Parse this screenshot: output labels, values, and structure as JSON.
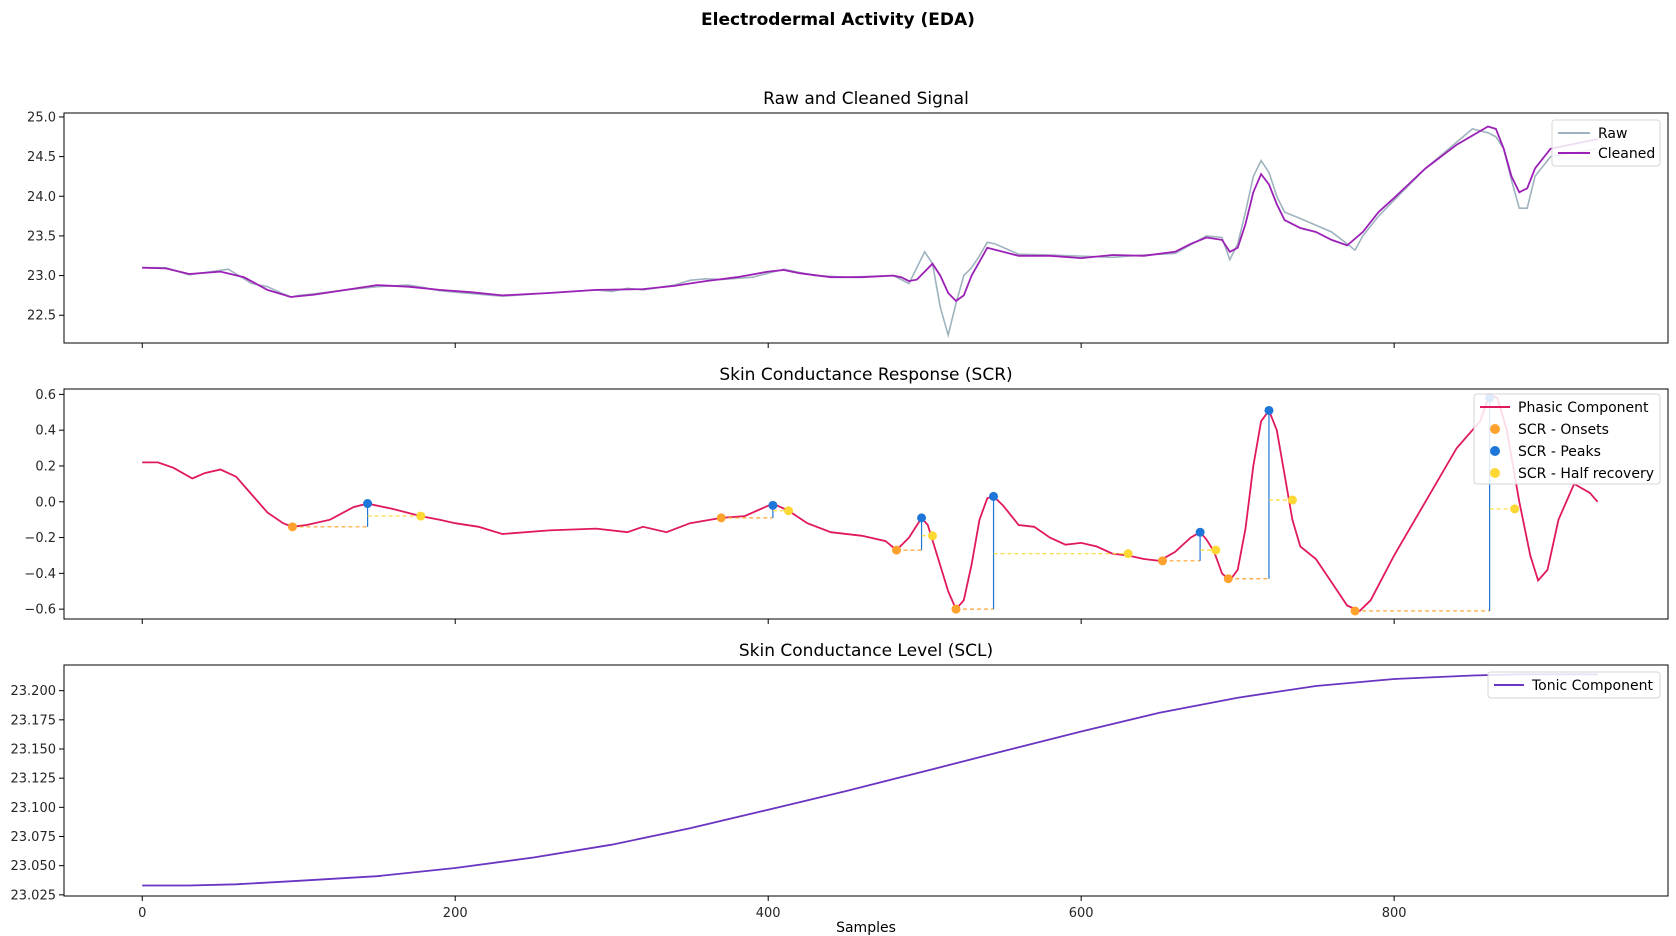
{
  "figure_title": "Electrodermal Activity (EDA)",
  "colors": {
    "raw": "#9fb3bf",
    "cleaned": "#9b20b6",
    "phasic": "#e0185e",
    "onsets": "#ffa22d",
    "peaks": "#1e76d8",
    "half_recovery": "#fdd835",
    "tonic": "#6a35c2"
  },
  "chart_data": [
    {
      "type": "line",
      "title": "Raw and Cleaned Signal",
      "xlim": [
        -50,
        975
      ],
      "ylim": [
        22.15,
        25.05
      ],
      "yticks": [
        "22.5",
        "23.0",
        "23.5",
        "24.0",
        "24.5",
        "25.0"
      ],
      "legend_position": "top-right",
      "series": [
        {
          "name": "Raw",
          "x": [
            0,
            15,
            30,
            55,
            70,
            80,
            90,
            95,
            100,
            110,
            130,
            150,
            170,
            180,
            190,
            200,
            230,
            260,
            290,
            300,
            310,
            320,
            340,
            350,
            360,
            370,
            390,
            410,
            430,
            450,
            480,
            490,
            500,
            505,
            510,
            515,
            520,
            525,
            530,
            535,
            540,
            545,
            560,
            580,
            620,
            640,
            660,
            680,
            690,
            695,
            700,
            705,
            710,
            715,
            720,
            725,
            730,
            740,
            760,
            770,
            775,
            780,
            790,
            800,
            820,
            850,
            860,
            865,
            870,
            875,
            880,
            885,
            890,
            900,
            930
          ],
          "values": [
            23.1,
            23.1,
            23.01,
            23.08,
            22.9,
            22.86,
            22.77,
            22.73,
            22.75,
            22.77,
            22.82,
            22.86,
            22.88,
            22.85,
            22.81,
            22.79,
            22.74,
            22.78,
            22.82,
            22.8,
            22.84,
            22.82,
            22.88,
            22.94,
            22.96,
            22.95,
            22.98,
            23.08,
            23.0,
            22.98,
            23.0,
            22.9,
            23.3,
            23.15,
            22.6,
            22.25,
            22.65,
            23.0,
            23.1,
            23.25,
            23.42,
            23.4,
            23.27,
            23.26,
            23.23,
            23.26,
            23.28,
            23.5,
            23.48,
            23.2,
            23.4,
            23.8,
            24.25,
            24.45,
            24.3,
            24.0,
            23.8,
            23.72,
            23.55,
            23.4,
            23.32,
            23.5,
            23.75,
            23.95,
            24.35,
            24.85,
            24.8,
            24.75,
            24.6,
            24.2,
            23.85,
            23.85,
            24.25,
            24.5,
            24.6
          ]
        },
        {
          "name": "Cleaned",
          "x": [
            0,
            15,
            30,
            50,
            65,
            80,
            95,
            110,
            130,
            150,
            170,
            190,
            210,
            230,
            260,
            290,
            320,
            340,
            360,
            380,
            400,
            410,
            420,
            440,
            460,
            480,
            485,
            490,
            495,
            500,
            505,
            510,
            515,
            520,
            525,
            530,
            540,
            550,
            560,
            580,
            600,
            620,
            640,
            660,
            670,
            680,
            690,
            695,
            700,
            705,
            710,
            715,
            720,
            725,
            730,
            740,
            750,
            760,
            770,
            780,
            790,
            800,
            820,
            840,
            860,
            865,
            870,
            875,
            880,
            885,
            890,
            900,
            920,
            930
          ],
          "values": [
            23.1,
            23.09,
            23.02,
            23.05,
            22.98,
            22.82,
            22.73,
            22.76,
            22.82,
            22.88,
            22.86,
            22.82,
            22.79,
            22.75,
            22.78,
            22.82,
            22.83,
            22.87,
            22.93,
            22.98,
            23.05,
            23.07,
            23.03,
            22.98,
            22.98,
            23.0,
            22.98,
            22.93,
            22.95,
            23.05,
            23.15,
            23.0,
            22.78,
            22.68,
            22.75,
            23.0,
            23.35,
            23.3,
            23.25,
            23.25,
            23.22,
            23.26,
            23.25,
            23.3,
            23.4,
            23.48,
            23.45,
            23.3,
            23.35,
            23.65,
            24.05,
            24.28,
            24.15,
            23.9,
            23.7,
            23.6,
            23.55,
            23.45,
            23.38,
            23.55,
            23.8,
            23.98,
            24.35,
            24.65,
            24.88,
            24.85,
            24.6,
            24.25,
            24.05,
            24.1,
            24.35,
            24.6,
            24.68,
            24.72
          ]
        }
      ]
    },
    {
      "type": "line",
      "title": "Skin Conductance Response (SCR)",
      "xlim": [
        -50,
        975
      ],
      "ylim": [
        -0.655,
        0.63
      ],
      "yticks": [
        "−0.6",
        "−0.4",
        "−0.2",
        "0.0",
        "0.2",
        "0.4",
        "0.6"
      ],
      "legend_position": "top-right",
      "series": [
        {
          "name": "Phasic Component",
          "x": [
            0,
            10,
            20,
            32,
            40,
            50,
            60,
            70,
            80,
            90,
            96,
            105,
            120,
            135,
            144,
            160,
            178,
            190,
            200,
            215,
            230,
            260,
            290,
            310,
            320,
            335,
            350,
            370,
            385,
            403,
            413,
            425,
            440,
            460,
            475,
            482,
            490,
            498,
            502,
            508,
            515,
            520,
            525,
            530,
            535,
            540,
            544,
            550,
            560,
            570,
            580,
            590,
            600,
            610,
            620,
            630,
            640,
            650,
            660,
            670,
            676,
            680,
            685,
            690,
            695,
            700,
            705,
            710,
            715,
            720,
            725,
            730,
            735,
            740,
            750,
            760,
            770,
            778,
            785,
            800,
            820,
            840,
            855,
            861,
            866,
            872,
            880,
            887,
            892,
            898,
            905,
            915,
            925,
            930
          ],
          "values": [
            0.22,
            0.22,
            0.19,
            0.13,
            0.16,
            0.18,
            0.14,
            0.04,
            -0.06,
            -0.12,
            -0.14,
            -0.13,
            -0.1,
            -0.03,
            -0.01,
            -0.04,
            -0.08,
            -0.1,
            -0.12,
            -0.14,
            -0.18,
            -0.16,
            -0.15,
            -0.17,
            -0.14,
            -0.17,
            -0.12,
            -0.09,
            -0.08,
            -0.01,
            -0.05,
            -0.12,
            -0.17,
            -0.19,
            -0.22,
            -0.27,
            -0.2,
            -0.09,
            -0.13,
            -0.3,
            -0.5,
            -0.6,
            -0.55,
            -0.35,
            -0.1,
            0.02,
            0.03,
            -0.02,
            -0.13,
            -0.14,
            -0.2,
            -0.24,
            -0.23,
            -0.25,
            -0.29,
            -0.3,
            -0.32,
            -0.33,
            -0.28,
            -0.2,
            -0.17,
            -0.21,
            -0.28,
            -0.4,
            -0.44,
            -0.38,
            -0.15,
            0.2,
            0.45,
            0.51,
            0.4,
            0.15,
            -0.1,
            -0.25,
            -0.32,
            -0.45,
            -0.58,
            -0.61,
            -0.55,
            -0.3,
            0.0,
            0.3,
            0.45,
            0.6,
            0.58,
            0.4,
            0.0,
            -0.3,
            -0.44,
            -0.38,
            -0.1,
            0.1,
            0.05,
            0.0
          ]
        }
      ],
      "onsets": {
        "name": "SCR - Onsets",
        "x": [
          96,
          370,
          482,
          520,
          652,
          694,
          775
        ],
        "values": [
          -0.14,
          -0.09,
          -0.27,
          -0.6,
          -0.33,
          -0.43,
          -0.61
        ]
      },
      "peaks": {
        "name": "SCR - Peaks",
        "x": [
          144,
          403,
          498,
          544,
          676,
          720,
          861
        ],
        "values": [
          -0.01,
          -0.02,
          -0.09,
          0.03,
          -0.17,
          0.51,
          0.58
        ]
      },
      "half_recovery": {
        "name": "SCR - Half recovery",
        "x": [
          178,
          413,
          505,
          630,
          686,
          735,
          877
        ],
        "values": [
          -0.08,
          -0.05,
          -0.19,
          -0.29,
          -0.27,
          0.01,
          -0.04
        ]
      }
    },
    {
      "type": "line",
      "title": "Skin Conductance Level (SCL)",
      "xlabel": "Samples",
      "xlim": [
        -50,
        975
      ],
      "ylim": [
        23.024,
        23.222
      ],
      "xticks": [
        "0",
        "200",
        "400",
        "600",
        "800"
      ],
      "yticks": [
        "23.025",
        "23.050",
        "23.075",
        "23.100",
        "23.125",
        "23.150",
        "23.175",
        "23.200"
      ],
      "legend_position": "top-right",
      "series": [
        {
          "name": "Tonic Component",
          "x": [
            0,
            30,
            60,
            100,
            150,
            200,
            250,
            300,
            350,
            400,
            450,
            500,
            550,
            600,
            650,
            700,
            750,
            800,
            850,
            880,
            905,
            930
          ],
          "values": [
            23.033,
            23.033,
            23.034,
            23.037,
            23.041,
            23.048,
            23.057,
            23.068,
            23.082,
            23.098,
            23.114,
            23.131,
            23.148,
            23.165,
            23.181,
            23.194,
            23.204,
            23.21,
            23.213,
            23.214,
            23.214,
            23.214
          ]
        }
      ]
    }
  ]
}
